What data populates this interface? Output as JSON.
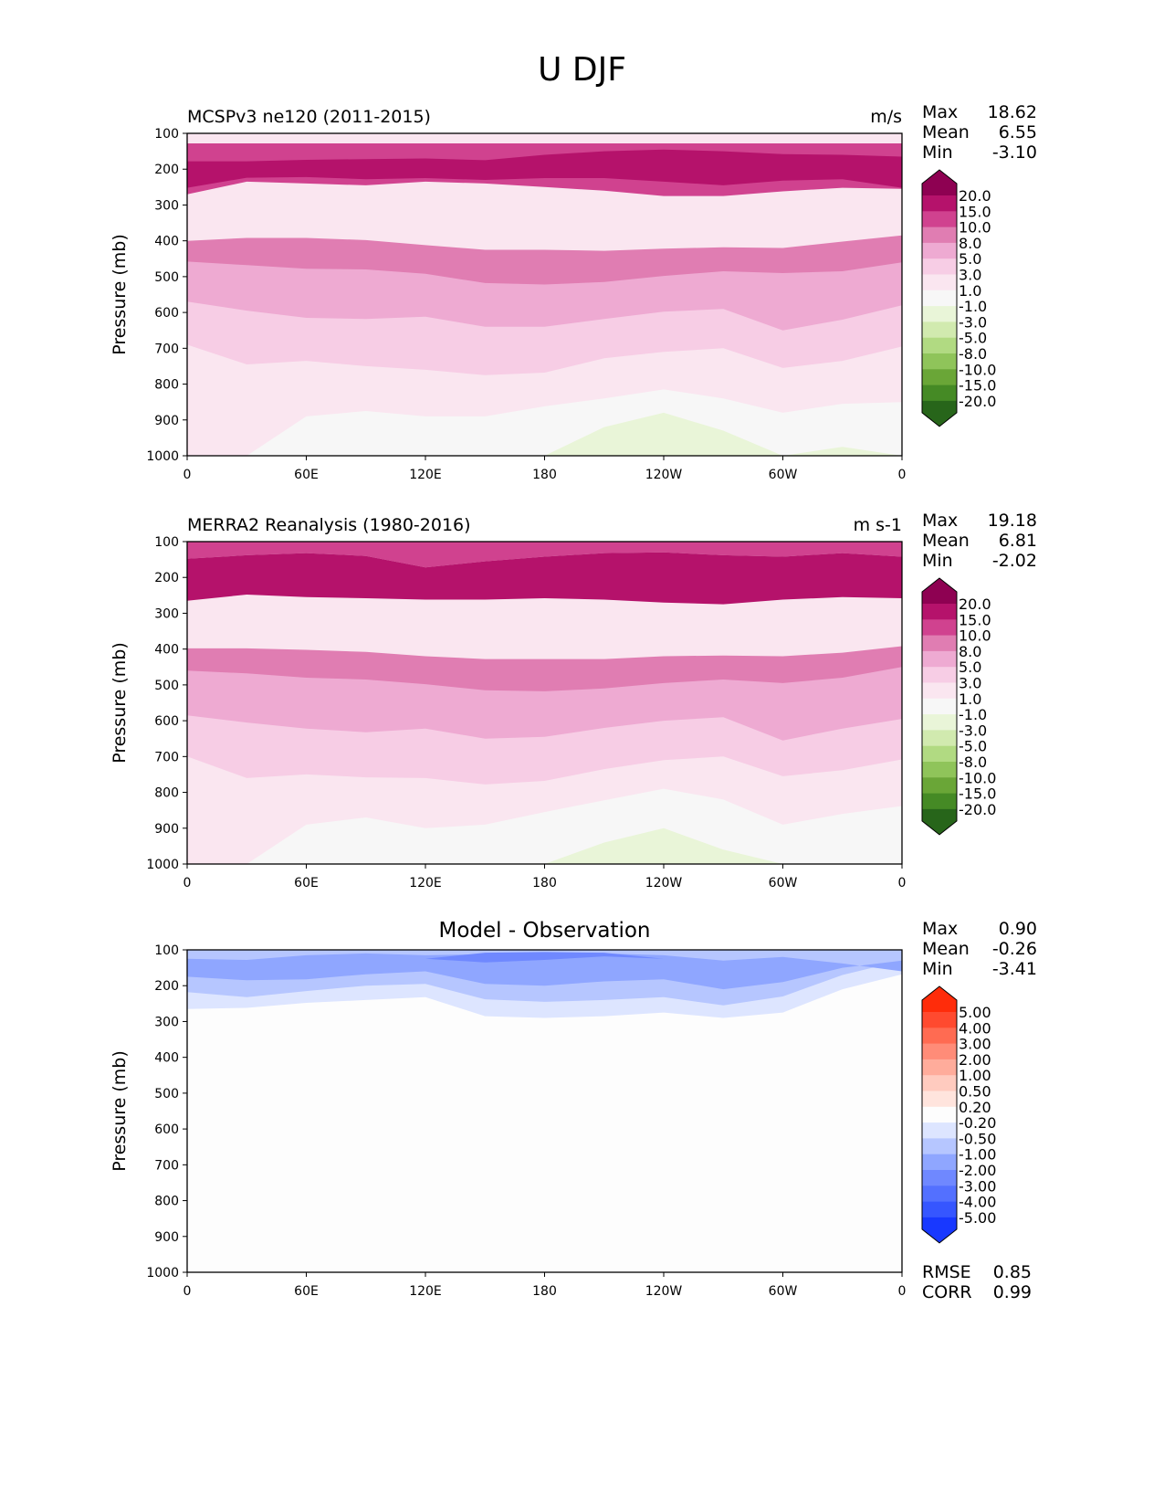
{
  "page_title": "U DJF",
  "panels": [
    {
      "title": "MCSPv3 ne120 (2011-2015)",
      "units": "m/s",
      "stats": [
        {
          "label": "Max",
          "value": "18.62"
        },
        {
          "label": "Mean",
          "value": "6.55"
        },
        {
          "label": "Min",
          "value": "-3.10"
        }
      ],
      "ylabel": "Pressure (mb)",
      "colorbar": "full"
    },
    {
      "title": "MERRA2 Reanalysis (1980-2016)",
      "units": "m s-1",
      "stats": [
        {
          "label": "Max",
          "value": "19.18"
        },
        {
          "label": "Mean",
          "value": "6.81"
        },
        {
          "label": "Min",
          "value": "-2.02"
        }
      ],
      "ylabel": "Pressure (mb)",
      "colorbar": "full"
    },
    {
      "title": "Model - Observation",
      "units": "",
      "stats": [
        {
          "label": "Max",
          "value": "0.90"
        },
        {
          "label": "Mean",
          "value": "-0.26"
        },
        {
          "label": "Min",
          "value": "-3.41"
        }
      ],
      "ylabel": "Pressure (mb)",
      "colorbar": "diff",
      "extra_stats": [
        {
          "label": "RMSE",
          "value": "0.85"
        },
        {
          "label": "CORR",
          "value": "0.99"
        }
      ]
    }
  ],
  "colorbars": {
    "full": {
      "labels": [
        "20.0",
        "15.0",
        "10.0",
        "8.0",
        "5.0",
        "3.0",
        "1.0",
        "-1.0",
        "-3.0",
        "-5.0",
        "-8.0",
        "-10.0",
        "-15.0",
        "-20.0"
      ],
      "colors": [
        "#8e0152",
        "#b5126b",
        "#d0428f",
        "#e07db2",
        "#eeaad2",
        "#f7cde5",
        "#fae6f0",
        "#f7f7f7",
        "#e9f5d8",
        "#d1eaaf",
        "#b1da82",
        "#8fc45a",
        "#6aa637",
        "#458a25",
        "#27651a"
      ]
    },
    "diff": {
      "labels": [
        "5.00",
        "4.00",
        "3.00",
        "2.00",
        "1.00",
        "0.50",
        "0.20",
        "-0.20",
        "-0.50",
        "-1.00",
        "-2.00",
        "-3.00",
        "-4.00",
        "-5.00"
      ],
      "colors": [
        "#ff2c0a",
        "#ff4a2f",
        "#ff6b52",
        "#ff8c78",
        "#ffac9b",
        "#ffcbbf",
        "#ffe4dd",
        "#fdfdfd",
        "#dde5ff",
        "#b6c6ff",
        "#8fa6ff",
        "#6f88ff",
        "#5370ff",
        "#3656ff",
        "#1838ff"
      ]
    }
  },
  "chart_data": [
    {
      "type": "contour",
      "title": "MCSPv3 ne120 (2011-2015)",
      "xlabel": "",
      "ylabel": "Pressure (mb)",
      "x_ticks": [
        "0",
        "60E",
        "120E",
        "180",
        "120W",
        "60W",
        "0"
      ],
      "x_range": [
        0,
        360
      ],
      "y_ticks": [
        100,
        200,
        300,
        400,
        500,
        600,
        700,
        800,
        900,
        1000
      ],
      "ylim": [
        100,
        1000
      ],
      "x": [
        0,
        30,
        60,
        90,
        120,
        150,
        180,
        210,
        240,
        270,
        300,
        330,
        360
      ],
      "bands": [
        {
          "level": "15.0",
          "top": [
            128,
            128,
            128,
            128,
            128,
            128,
            128,
            128,
            128,
            128,
            128,
            128,
            128
          ],
          "bottom": [
            270,
            235,
            240,
            245,
            235,
            240,
            250,
            260,
            275,
            275,
            262,
            252,
            255
          ]
        },
        {
          "level": "20.0",
          "top": [
            178,
            178,
            174,
            172,
            170,
            175,
            160,
            150,
            145,
            150,
            158,
            160,
            165
          ],
          "bottom": [
            252,
            224,
            222,
            228,
            225,
            230,
            225,
            225,
            235,
            245,
            232,
            228,
            252
          ]
        },
        {
          "level": "10.0",
          "top": [
            400,
            392,
            392,
            398,
            412,
            425,
            425,
            428,
            422,
            418,
            420,
            402,
            385
          ]
        },
        {
          "level": "8.0",
          "top": [
            458,
            468,
            478,
            480,
            492,
            518,
            522,
            515,
            498,
            485,
            490,
            485,
            460
          ]
        },
        {
          "level": "5.0",
          "top": [
            570,
            595,
            615,
            618,
            612,
            640,
            640,
            618,
            598,
            590,
            650,
            620,
            580
          ]
        },
        {
          "level": "3.0",
          "top": [
            690,
            745,
            735,
            750,
            760,
            775,
            768,
            728,
            710,
            700,
            755,
            735,
            695
          ]
        },
        {
          "level": "1.0",
          "top": [
            1000,
            1000,
            890,
            875,
            890,
            890,
            862,
            840,
            815,
            840,
            880,
            855,
            850
          ]
        },
        {
          "level": "-1.0",
          "top": [
            1000,
            1000,
            1000,
            1000,
            1000,
            1000,
            1000,
            920,
            880,
            930,
            1000,
            975,
            1000
          ]
        }
      ]
    },
    {
      "type": "contour",
      "title": "MERRA2 Reanalysis (1980-2016)",
      "xlabel": "",
      "ylabel": "Pressure (mb)",
      "x_ticks": [
        "0",
        "60E",
        "120E",
        "180",
        "120W",
        "60W",
        "0"
      ],
      "x_range": [
        0,
        360
      ],
      "y_ticks": [
        100,
        200,
        300,
        400,
        500,
        600,
        700,
        800,
        900,
        1000
      ],
      "ylim": [
        100,
        1000
      ],
      "x": [
        0,
        30,
        60,
        90,
        120,
        150,
        180,
        210,
        240,
        270,
        300,
        330,
        360
      ],
      "bands": [
        {
          "level": "15.0",
          "top": [
            100,
            100,
            100,
            100,
            100,
            100,
            100,
            100,
            100,
            100,
            100,
            100,
            100
          ],
          "bottom": [
            148,
            138,
            132,
            140,
            172,
            155,
            142,
            132,
            130,
            138,
            142,
            132,
            142
          ]
        },
        {
          "level": "20.0",
          "top": [
            148,
            138,
            132,
            140,
            172,
            155,
            142,
            132,
            130,
            138,
            142,
            132,
            142
          ],
          "bottom": [
            265,
            248,
            255,
            258,
            262,
            262,
            258,
            262,
            270,
            275,
            262,
            255,
            258
          ]
        },
        {
          "level": "10.0",
          "top": [
            398,
            398,
            402,
            408,
            420,
            428,
            428,
            428,
            420,
            418,
            420,
            410,
            392
          ]
        },
        {
          "level": "8.0",
          "top": [
            460,
            468,
            480,
            485,
            498,
            515,
            518,
            510,
            495,
            485,
            495,
            480,
            450
          ]
        },
        {
          "level": "5.0",
          "top": [
            585,
            605,
            622,
            632,
            622,
            650,
            645,
            620,
            600,
            590,
            655,
            622,
            595
          ]
        },
        {
          "level": "3.0",
          "top": [
            700,
            760,
            750,
            758,
            760,
            778,
            768,
            735,
            710,
            700,
            755,
            738,
            708
          ]
        },
        {
          "level": "1.0",
          "top": [
            1000,
            1000,
            890,
            870,
            900,
            890,
            855,
            822,
            790,
            820,
            890,
            860,
            838
          ]
        },
        {
          "level": "-1.0",
          "top": [
            1000,
            1000,
            1000,
            1000,
            1000,
            1000,
            1000,
            940,
            900,
            960,
            1000,
            1000,
            1000
          ]
        }
      ]
    },
    {
      "type": "contour",
      "title": "Model - Observation",
      "xlabel": "",
      "ylabel": "Pressure (mb)",
      "x_ticks": [
        "0",
        "60E",
        "120E",
        "180",
        "120W",
        "60W",
        "0"
      ],
      "x_range": [
        0,
        360
      ],
      "y_ticks": [
        100,
        200,
        300,
        400,
        500,
        600,
        700,
        800,
        900,
        1000
      ],
      "ylim": [
        100,
        1000
      ],
      "x": [
        0,
        30,
        60,
        90,
        120,
        150,
        180,
        210,
        240,
        270,
        300,
        330,
        360
      ],
      "bands": [
        {
          "level": "-0.20",
          "top": [
            100,
            100,
            100,
            100,
            100,
            100,
            100,
            100,
            100,
            100,
            100,
            100,
            100
          ],
          "bottom": [
            265,
            262,
            248,
            240,
            232,
            285,
            290,
            285,
            275,
            290,
            275,
            210,
            168
          ]
        },
        {
          "level": "-0.50",
          "top": [
            100,
            100,
            100,
            100,
            100,
            100,
            100,
            100,
            100,
            100,
            100,
            100,
            100
          ],
          "bottom": [
            218,
            232,
            215,
            200,
            195,
            238,
            245,
            240,
            232,
            255,
            230,
            170,
            130
          ]
        },
        {
          "level": "-1.00",
          "top": [
            125,
            128,
            115,
            110,
            115,
            112,
            108,
            110,
            115,
            130,
            120,
            138,
            160
          ],
          "bottom": [
            175,
            185,
            182,
            168,
            160,
            195,
            200,
            188,
            182,
            210,
            190,
            150,
            130
          ]
        },
        {
          "level": "-2.00",
          "top": [
            125,
            125,
            125,
            125,
            125,
            108,
            106,
            108,
            125,
            125,
            125,
            125,
            125
          ],
          "bottom": [
            125,
            125,
            125,
            125,
            125,
            135,
            128,
            118,
            125,
            125,
            125,
            125,
            125
          ]
        }
      ]
    }
  ]
}
